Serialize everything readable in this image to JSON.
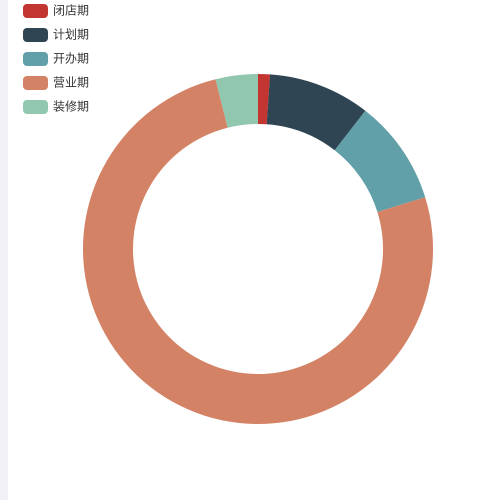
{
  "chart_data": {
    "type": "pie",
    "categories": [
      "闭店期",
      "计划期",
      "开办期",
      "营业期",
      "装修期"
    ],
    "values": [
      1.1,
      9.4,
      9.7,
      75.8,
      3.9
    ],
    "colors": [
      "#c23531",
      "#2f4554",
      "#61a0a8",
      "#d48265",
      "#91c7ae"
    ],
    "legend": "top-left"
  }
}
